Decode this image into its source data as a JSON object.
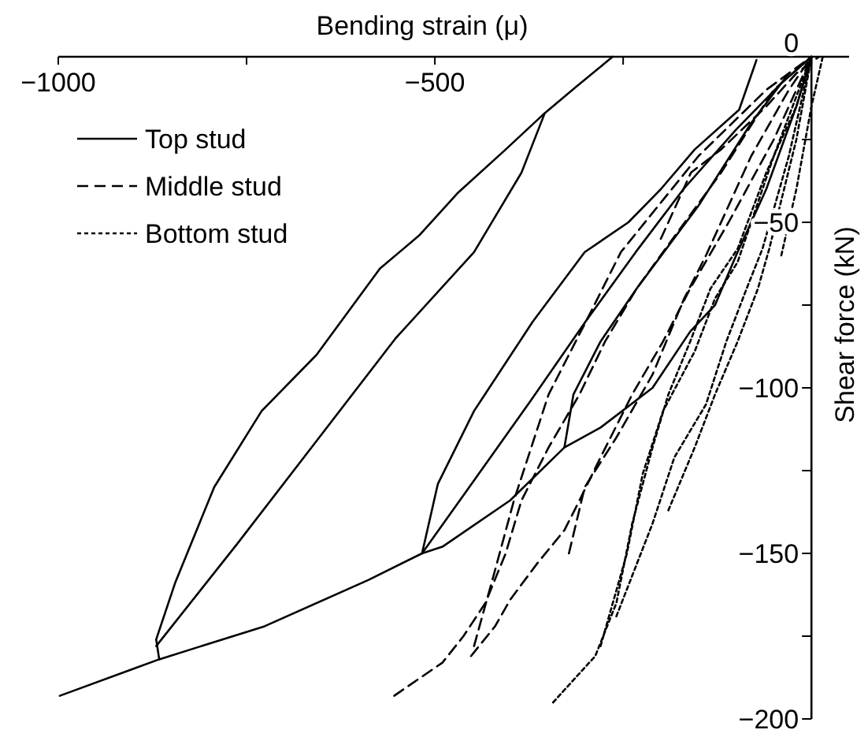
{
  "chart_data": {
    "type": "line",
    "xlabel": "Bending strain (μ)",
    "ylabel": "Shear force (kN)",
    "xlim": [
      -1000,
      50
    ],
    "ylim": [
      -200,
      0
    ],
    "xticks": [
      -1000,
      {
        "value": -750,
        "label": null
      },
      -500,
      {
        "value": -250,
        "label": null
      },
      {
        "value": 0,
        "label": null
      }
    ],
    "yticks": [
      0,
      {
        "value": -25,
        "label": null
      },
      -50,
      {
        "value": -75,
        "label": null
      },
      -100,
      {
        "value": -125,
        "label": null
      },
      -150,
      {
        "value": -175,
        "label": null
      },
      -200
    ],
    "legend": "top left",
    "grid": false,
    "marker": "none",
    "series": [
      {
        "name": "Top stud",
        "color": "#000000",
        "line_style": "solid",
        "x": [
          -264,
          -312,
          -354,
          -406,
          -469,
          -521,
          -573,
          -657,
          -730,
          -793,
          -845,
          -870,
          -866,
          -902,
          -998
        ],
        "values": [
          0,
          -9,
          -17,
          -28,
          -41,
          -54,
          -64,
          -90,
          -107,
          -130,
          -159,
          -176,
          -182,
          -185,
          -193
        ]
      },
      {
        "color": "#000000",
        "line_style": "solid",
        "x": [
          -870,
          -762,
          -657,
          -552,
          -448,
          -385,
          -354
        ],
        "values": [
          -178,
          -147,
          -116,
          -85,
          -59,
          -35,
          -17
        ]
      },
      {
        "color": "#000000",
        "line_style": "solid",
        "x": [
          -866,
          -726,
          -588,
          -517,
          -490,
          -400,
          -328,
          -280,
          -211,
          -161,
          -128,
          -100,
          -60,
          -20,
          0
        ],
        "values": [
          -182,
          -172,
          -158,
          -150,
          -148,
          -134,
          -118,
          -112,
          -100,
          -83,
          -75,
          -60,
          -40,
          -15,
          0
        ]
      },
      {
        "color": "#000000",
        "line_style": "solid",
        "x": [
          -73,
          -96,
          -155,
          -200,
          -243,
          -301,
          -370,
          -448,
          -496,
          -517
        ],
        "values": [
          -1,
          -16,
          -28,
          -40,
          -50,
          -59,
          -80,
          -107,
          -129,
          -150
        ]
      },
      {
        "color": "#000000",
        "line_style": "solid",
        "x": [
          -517,
          -448,
          -370,
          -300,
          -230,
          -170,
          -100,
          -40,
          0
        ],
        "values": [
          -150,
          -128,
          -103,
          -80,
          -58,
          -40,
          -22,
          -8,
          0
        ]
      },
      {
        "color": "#000000",
        "line_style": "solid",
        "x": [
          -328,
          -316,
          -280,
          -232,
          -150,
          -80,
          -30
        ],
        "values": [
          -118,
          -102,
          -86,
          -70,
          -45,
          -20,
          -5
        ]
      },
      {
        "name": "Middle stud",
        "color": "#000000",
        "line_style": "dashed",
        "x": [
          -554,
          -490,
          -462,
          -433,
          -406,
          -385,
          -349,
          -308,
          -274,
          -232,
          -197,
          -120,
          -50,
          0
        ],
        "values": [
          -193,
          -183,
          -175,
          -165,
          -150,
          -134,
          -118,
          -102,
          -86,
          -70,
          -59,
          -35,
          -10,
          0
        ]
      },
      {
        "color": "#000000",
        "line_style": "dashed",
        "x": [
          -452,
          -420,
          -400,
          -364,
          -328,
          -308,
          -280,
          -238,
          -197,
          -161,
          -110,
          -50,
          0
        ],
        "values": [
          -181,
          -172,
          -164,
          -153,
          -143,
          -134,
          -121,
          -102,
          -86,
          -70,
          -50,
          -25,
          0
        ]
      },
      {
        "color": "#000000",
        "line_style": "dashed",
        "x": [
          -448,
          -420,
          -395,
          -349,
          -295,
          -253,
          -150,
          -60,
          0
        ],
        "values": [
          -178,
          -155,
          -134,
          -102,
          -78,
          -59,
          -30,
          -10,
          0
        ]
      },
      {
        "color": "#000000",
        "line_style": "dashed",
        "x": [
          -322,
          -301,
          -259,
          -211,
          -169,
          -140,
          -80,
          -30,
          0
        ],
        "values": [
          -150,
          -130,
          -115,
          -96,
          -73,
          -60,
          -30,
          -10,
          0
        ]
      },
      {
        "color": "#000000",
        "line_style": "dashed",
        "x": [
          -200,
          -160,
          -120,
          -60,
          -20,
          10
        ],
        "values": [
          -55,
          -35,
          -28,
          -15,
          -5,
          0
        ]
      },
      {
        "name": "Bottom stud",
        "color": "#000000",
        "line_style": "dotted",
        "x": [
          -343,
          -287,
          -259,
          -238,
          -211,
          -190,
          -161,
          -134,
          -98,
          -60,
          -20,
          0
        ],
        "values": [
          -195,
          -181,
          -165,
          -141,
          -118,
          -102,
          -86,
          -70,
          -58,
          -35,
          -15,
          0
        ]
      },
      {
        "color": "#000000",
        "line_style": "dotted",
        "x": [
          -280,
          -245,
          -224,
          -197,
          -155,
          -128,
          -98,
          -50,
          0
        ],
        "values": [
          -178,
          -150,
          -126,
          -107,
          -89,
          -73,
          -62,
          -30,
          0
        ]
      },
      {
        "color": "#000000",
        "line_style": "dotted",
        "x": [
          -259,
          -211,
          -182,
          -140,
          -113,
          -86,
          -65,
          -30,
          0
        ],
        "values": [
          -169,
          -141,
          -121,
          -105,
          -86,
          -70,
          -58,
          -30,
          0
        ]
      },
      {
        "color": "#000000",
        "line_style": "dotted",
        "x": [
          -190,
          -155,
          -128,
          -98,
          -71,
          -56,
          -20,
          0
        ],
        "values": [
          -137,
          -118,
          -102,
          -86,
          -70,
          -58,
          -25,
          0
        ]
      },
      {
        "color": "#000000",
        "line_style": "dotted",
        "x": [
          -40,
          -20,
          0,
          15
        ],
        "values": [
          -60,
          -40,
          -15,
          0
        ]
      }
    ]
  }
}
